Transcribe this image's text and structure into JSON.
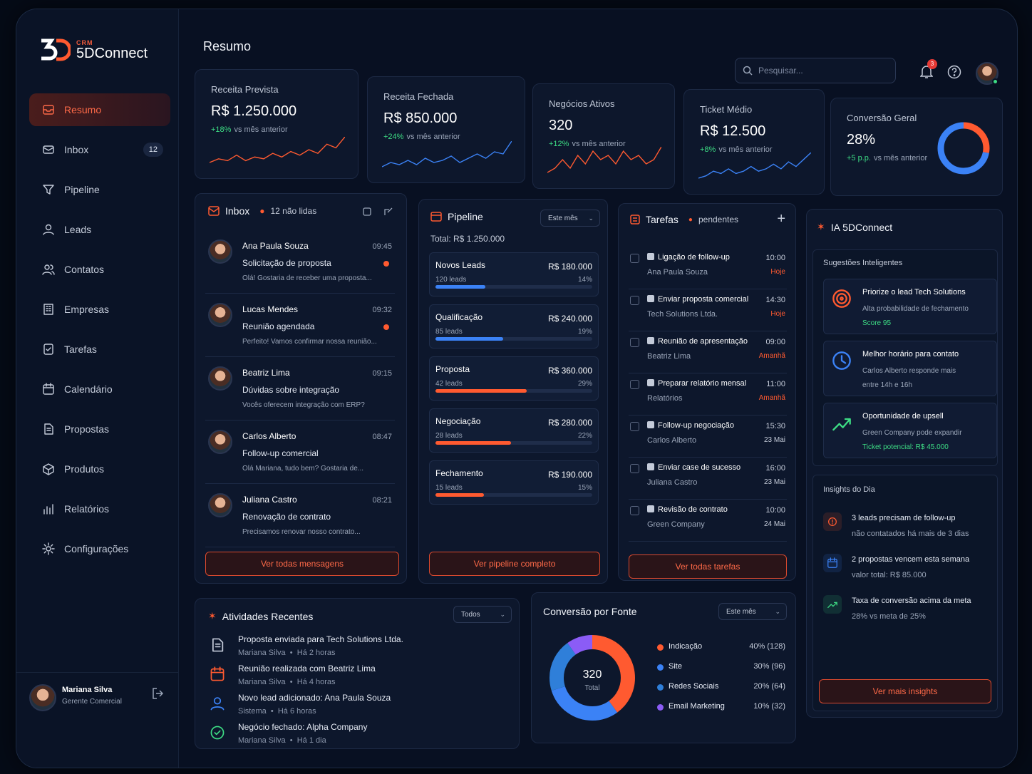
{
  "brand": {
    "crm": "CRM",
    "name": "5DConnect"
  },
  "page_title": "Resumo",
  "search": {
    "placeholder": "Pesquisar..."
  },
  "notifications": {
    "count": "3"
  },
  "sidebar": {
    "items": [
      {
        "label": "Resumo",
        "icon": "inbox-tray-icon"
      },
      {
        "label": "Inbox",
        "icon": "mail-icon",
        "badge": "12"
      },
      {
        "label": "Pipeline",
        "icon": "funnel-icon"
      },
      {
        "label": "Leads",
        "icon": "user-icon"
      },
      {
        "label": "Contatos",
        "icon": "users-icon"
      },
      {
        "label": "Empresas",
        "icon": "building-icon"
      },
      {
        "label": "Tarefas",
        "icon": "checklist-icon"
      },
      {
        "label": "Calendário",
        "icon": "calendar-icon"
      },
      {
        "label": "Propostas",
        "icon": "document-icon"
      },
      {
        "label": "Produtos",
        "icon": "box-icon"
      },
      {
        "label": "Relatórios",
        "icon": "bar-chart-icon"
      },
      {
        "label": "Configurações",
        "icon": "gear-icon"
      }
    ]
  },
  "user": {
    "name": "Mariana Silva",
    "role": "Gerente Comercial"
  },
  "kpis": [
    {
      "label": "Receita Prevista",
      "value": "R$ 1.250.000",
      "delta": "+18%",
      "delta_text": "vs mês anterior",
      "spark": [
        4,
        6,
        5,
        8,
        5,
        7,
        6,
        9,
        7,
        10,
        8,
        11,
        9,
        14,
        12,
        18
      ],
      "color": "#ff5a30"
    },
    {
      "label": "Receita Fechada",
      "value": "R$ 850.000",
      "delta": "+24%",
      "delta_text": "vs mês anterior",
      "spark": [
        5,
        7,
        6,
        8,
        6,
        9,
        7,
        8,
        10,
        7,
        9,
        11,
        9,
        12,
        11,
        17
      ],
      "color": "#3b82f6"
    },
    {
      "label": "Negócios Ativos",
      "value": "320",
      "delta": "+12%",
      "delta_text": "vs mês anterior",
      "spark": [
        5,
        6,
        8,
        6,
        9,
        7,
        10,
        8,
        9,
        7,
        10,
        8,
        9,
        7,
        8,
        11
      ],
      "color": "#ff5a30"
    },
    {
      "label": "Ticket Médio",
      "value": "R$ 12.500",
      "delta": "+8%",
      "delta_text": "vs mês anterior",
      "spark": [
        4,
        5,
        7,
        6,
        8,
        6,
        7,
        9,
        7,
        8,
        10,
        8,
        11,
        9,
        12,
        15
      ],
      "color": "#3b82f6"
    },
    {
      "label": "Conversão Geral",
      "value": "28%",
      "delta": "+5 p.p.",
      "delta_text": "vs mês anterior",
      "donut": [
        0.28,
        0.72
      ]
    }
  ],
  "inbox": {
    "title": "Inbox",
    "unread": "12 não lidas",
    "button": "Ver todas mensagens",
    "messages": [
      {
        "name": "Ana Paula Souza",
        "time": "09:45",
        "subject": "Solicitação de proposta",
        "preview": "Olá! Gostaria de receber uma proposta...",
        "unread": true
      },
      {
        "name": "Lucas Mendes",
        "time": "09:32",
        "subject": "Reunião agendada",
        "preview": "Perfeito! Vamos confirmar nossa reunião...",
        "unread": true
      },
      {
        "name": "Beatriz Lima",
        "time": "09:15",
        "subject": "Dúvidas sobre integração",
        "preview": "Vocês oferecem integração com ERP?",
        "unread": false
      },
      {
        "name": "Carlos Alberto",
        "time": "08:47",
        "subject": "Follow-up comercial",
        "preview": "Olá Mariana, tudo bem? Gostaria de...",
        "unread": false
      },
      {
        "name": "Juliana Castro",
        "time": "08:21",
        "subject": "Renovação de contrato",
        "preview": "Precisamos renovar nosso contrato...",
        "unread": false
      }
    ]
  },
  "pipeline": {
    "title": "Pipeline",
    "filter": "Este mês",
    "total": "Total: R$ 1.250.000",
    "button": "Ver pipeline completo",
    "stages": [
      {
        "name": "Novos Leads",
        "value": "R$ 180.000",
        "leads": "120 leads",
        "pct": "14%",
        "fill": 0.32,
        "color": "#3b82f6"
      },
      {
        "name": "Qualificação",
        "value": "R$ 240.000",
        "leads": "85 leads",
        "pct": "19%",
        "fill": 0.43,
        "color": "#3b82f6"
      },
      {
        "name": "Proposta",
        "value": "R$ 360.000",
        "leads": "42 leads",
        "pct": "29%",
        "fill": 0.58,
        "color": "#ff5a30"
      },
      {
        "name": "Negociação",
        "value": "R$ 280.000",
        "leads": "28 leads",
        "pct": "22%",
        "fill": 0.48,
        "color": "#ff5a30"
      },
      {
        "name": "Fechamento",
        "value": "R$ 190.000",
        "leads": "15 leads",
        "pct": "15%",
        "fill": 0.31,
        "color": "#ff5a30"
      }
    ]
  },
  "tasks": {
    "title": "Tarefas",
    "status": "pendentes",
    "button": "Ver todas tarefas",
    "items": [
      {
        "title": "Ligação de follow-up",
        "who": "Ana Paula Souza",
        "time": "10:00",
        "due": "Hoje",
        "color": "#ff5a30"
      },
      {
        "title": "Enviar proposta comercial",
        "who": "Tech Solutions Ltda.",
        "time": "14:30",
        "due": "Hoje",
        "color": "#ff5a30"
      },
      {
        "title": "Reunião de apresentação",
        "who": "Beatriz Lima",
        "time": "09:00",
        "due": "Amanhã",
        "color": "#ff5a30"
      },
      {
        "title": "Preparar relatório mensal",
        "who": "Relatórios",
        "time": "11:00",
        "due": "Amanhã",
        "color": "#ff5a30"
      },
      {
        "title": "Follow-up negociação",
        "who": "Carlos Alberto",
        "time": "15:30",
        "due": "23 Mai",
        "color": "#c4cbd9"
      },
      {
        "title": "Enviar case de sucesso",
        "who": "Juliana Castro",
        "time": "16:00",
        "due": "23 Mai",
        "color": "#c4cbd9"
      },
      {
        "title": "Revisão de contrato",
        "who": "Green Company",
        "time": "10:00",
        "due": "24 Mai",
        "color": "#c4cbd9"
      }
    ]
  },
  "ai": {
    "title": "IA 5DConnect",
    "suggestions_title": "Sugestões Inteligentes",
    "suggestions": [
      {
        "title": "Priorize o lead Tech Solutions",
        "line1": "Alta probabilidade de fechamento",
        "line2": "Score 95",
        "icon": "target-icon"
      },
      {
        "title": "Melhor horário para contato",
        "line1": "Carlos Alberto responde mais",
        "line2": "entre 14h e 16h",
        "icon": "clock-icon"
      },
      {
        "title": "Oportunidade de upsell",
        "line1": "Green Company pode expandir",
        "line2": "Ticket potencial: R$ 45.000",
        "icon": "growth-chart-icon"
      }
    ],
    "insights_title": "Insights do Dia",
    "insights": [
      {
        "title": "3 leads precisam de follow-up",
        "sub": "não contatados há mais de 3 dias",
        "color": "#ff5a30",
        "icon": "alert-icon"
      },
      {
        "title": "2 propostas vencem esta semana",
        "sub": "valor total: R$ 85.000",
        "color": "#3b82f6",
        "icon": "calendar-icon"
      },
      {
        "title": "Taxa de conversão acima da meta",
        "sub": "28% vs meta de 25%",
        "color": "#3ddc84",
        "icon": "trend-up-icon"
      }
    ],
    "button": "Ver mais insights"
  },
  "activities": {
    "title": "Atividades Recentes",
    "filter": "Todos",
    "items": [
      {
        "title": "Proposta enviada para Tech Solutions Ltda.",
        "who": "Mariana Silva",
        "when": "Há 2 horas",
        "icon": "document-icon",
        "color": "#c4cbd9"
      },
      {
        "title": "Reunião realizada com Beatriz Lima",
        "who": "Mariana Silva",
        "when": "Há 4 horas",
        "icon": "calendar-icon",
        "color": "#ff5a30"
      },
      {
        "title": "Novo lead adicionado: Ana Paula Souza",
        "who": "Sistema",
        "when": "Há 6 horas",
        "icon": "user-icon",
        "color": "#3b82f6"
      },
      {
        "title": "Negócio fechado: Alpha Company",
        "who": "Mariana Silva",
        "when": "Há 1 dia",
        "icon": "check-circle-icon",
        "color": "#3ddc84"
      }
    ]
  },
  "source": {
    "title": "Conversão por Fonte",
    "filter": "Este mês",
    "center_value": "320",
    "center_label": "Total"
  },
  "chart_data": {
    "type": "pie",
    "title": "Conversão por Fonte",
    "total": 320,
    "categories": [
      "Indicação",
      "Site",
      "Redes Sociais",
      "Email Marketing"
    ],
    "values": [
      128,
      96,
      64,
      32
    ],
    "labels": [
      "40% (128)",
      "30% (96)",
      "20% (64)",
      "10% (32)"
    ],
    "colors": [
      "#ff5a30",
      "#3b82f6",
      "#2f7fd9",
      "#8b5cf6"
    ]
  }
}
